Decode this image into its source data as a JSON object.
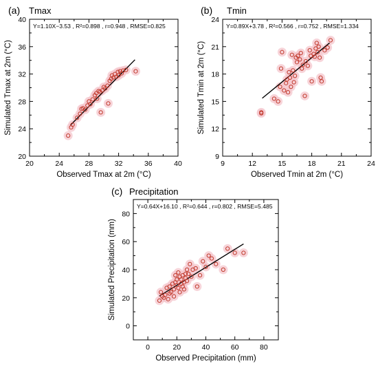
{
  "chart_data": [
    {
      "type": "scatter",
      "panel_label": "(a)",
      "title": "Tmax",
      "stats": "Y=1.10X−3.53 , R²=0.898 , r=0.948 , RMSE=0.825",
      "xlabel": "Observed Tmax at 2m (°C)",
      "ylabel": "Simulated Tmax at 2m (°C)",
      "xlim": [
        20,
        40
      ],
      "ylim": [
        20,
        40
      ],
      "xticks": [
        "20",
        "24",
        "28",
        "32",
        "36",
        "40"
      ],
      "yticks": [
        "20",
        "24",
        "28",
        "32",
        "36",
        "40"
      ],
      "regression": {
        "slope": 1.1,
        "intercept": -3.53,
        "x_range": [
          25.5,
          34.2
        ]
      },
      "marker_color": "#c0392b",
      "halo_color": "#f4c6cc",
      "line_color": "#000000",
      "points": [
        [
          25.2,
          23.0
        ],
        [
          25.6,
          24.2
        ],
        [
          25.8,
          24.6
        ],
        [
          26.4,
          25.6
        ],
        [
          26.8,
          26.2
        ],
        [
          27.0,
          26.9
        ],
        [
          27.2,
          27.0
        ],
        [
          27.5,
          26.8
        ],
        [
          27.8,
          27.4
        ],
        [
          28.0,
          28.0
        ],
        [
          28.2,
          27.6
        ],
        [
          28.5,
          28.3
        ],
        [
          28.8,
          28.9
        ],
        [
          29.0,
          29.2
        ],
        [
          29.1,
          28.4
        ],
        [
          29.3,
          29.5
        ],
        [
          29.5,
          29.4
        ],
        [
          29.6,
          26.4
        ],
        [
          29.8,
          29.6
        ],
        [
          30.0,
          30.1
        ],
        [
          30.2,
          29.9
        ],
        [
          30.5,
          30.3
        ],
        [
          30.6,
          27.7
        ],
        [
          30.8,
          31.0
        ],
        [
          31.0,
          31.3
        ],
        [
          31.1,
          31.8
        ],
        [
          31.3,
          31.5
        ],
        [
          31.5,
          32.0
        ],
        [
          31.7,
          31.6
        ],
        [
          31.9,
          32.3
        ],
        [
          32.0,
          31.8
        ],
        [
          32.2,
          32.4
        ],
        [
          32.4,
          32.1
        ],
        [
          32.6,
          32.5
        ],
        [
          33.0,
          32.6
        ],
        [
          34.3,
          32.4
        ]
      ]
    },
    {
      "type": "scatter",
      "panel_label": "(b)",
      "title": "Tmin",
      "stats": "Y=0.89X+3.78 , R²=0.566 , r=0.752 , RMSE=1.334",
      "xlabel": "Observed Tmin at 2m (°C)",
      "ylabel": "Simulated Tmin at 2m (°C)",
      "xlim": [
        9,
        24
      ],
      "ylim": [
        9,
        24
      ],
      "xticks": [
        "9",
        "12",
        "15",
        "18",
        "21",
        "24"
      ],
      "yticks": [
        "9",
        "12",
        "15",
        "18",
        "21",
        "24"
      ],
      "regression": {
        "slope": 0.89,
        "intercept": 3.78,
        "x_range": [
          13.0,
          19.8
        ]
      },
      "marker_color": "#c0392b",
      "halo_color": "#f4c6cc",
      "line_color": "#000000",
      "points": [
        [
          12.9,
          13.8
        ],
        [
          12.9,
          13.7
        ],
        [
          14.2,
          15.3
        ],
        [
          14.6,
          15.0
        ],
        [
          14.8,
          16.6
        ],
        [
          14.9,
          18.6
        ],
        [
          15.0,
          20.4
        ],
        [
          15.2,
          16.2
        ],
        [
          15.4,
          17.0
        ],
        [
          15.5,
          17.4
        ],
        [
          15.6,
          16.0
        ],
        [
          15.7,
          18.2
        ],
        [
          15.8,
          17.6
        ],
        [
          15.9,
          16.6
        ],
        [
          16.0,
          20.1
        ],
        [
          16.1,
          18.4
        ],
        [
          16.2,
          17.1
        ],
        [
          16.3,
          17.8
        ],
        [
          16.4,
          19.8
        ],
        [
          16.5,
          19.3
        ],
        [
          16.6,
          20.0
        ],
        [
          16.8,
          19.6
        ],
        [
          16.9,
          20.3
        ],
        [
          17.0,
          18.6
        ],
        [
          17.1,
          19.0
        ],
        [
          17.3,
          15.6
        ],
        [
          17.4,
          19.4
        ],
        [
          17.6,
          18.9
        ],
        [
          17.8,
          20.6
        ],
        [
          18.0,
          17.2
        ],
        [
          18.2,
          20.2
        ],
        [
          18.3,
          19.9
        ],
        [
          18.4,
          20.8
        ],
        [
          18.5,
          21.4
        ],
        [
          18.6,
          20.4
        ],
        [
          18.8,
          19.8
        ],
        [
          18.9,
          17.6
        ],
        [
          19.0,
          17.2
        ],
        [
          19.3,
          20.6
        ],
        [
          19.6,
          20.9
        ],
        [
          19.9,
          21.7
        ],
        [
          17.9,
          20.0
        ],
        [
          18.7,
          21.0
        ]
      ]
    },
    {
      "type": "scatter",
      "panel_label": "(c)",
      "title": "Precipitation",
      "stats": "Y=0.64X+16.10 , R²=0.644 , r=0.802 , RMSE=5.485",
      "xlabel": "Observed Precipitation (mm)",
      "ylabel": "Simulated Precipitation (mm)",
      "xlim": [
        -10,
        90
      ],
      "ylim": [
        -10,
        90
      ],
      "xticks": [
        "0",
        "20",
        "40",
        "60",
        "80"
      ],
      "yticks": [
        "0",
        "20",
        "40",
        "60",
        "80"
      ],
      "regression": {
        "slope": 0.64,
        "intercept": 16.1,
        "x_range": [
          8,
          66
        ]
      },
      "marker_color": "#c0392b",
      "halo_color": "#f4c6cc",
      "line_color": "#000000",
      "points": [
        [
          8,
          18
        ],
        [
          9,
          24
        ],
        [
          10,
          21
        ],
        [
          11,
          20
        ],
        [
          12,
          22
        ],
        [
          13,
          27
        ],
        [
          14,
          19
        ],
        [
          15,
          23
        ],
        [
          15,
          28
        ],
        [
          16,
          24
        ],
        [
          17,
          30
        ],
        [
          18,
          21
        ],
        [
          18,
          26
        ],
        [
          19,
          31
        ],
        [
          19,
          36
        ],
        [
          20,
          33
        ],
        [
          20,
          29
        ],
        [
          21,
          38
        ],
        [
          21,
          27
        ],
        [
          22,
          35
        ],
        [
          22,
          24
        ],
        [
          23,
          30
        ],
        [
          23,
          33
        ],
        [
          24,
          36
        ],
        [
          24,
          28
        ],
        [
          25,
          31
        ],
        [
          25,
          26
        ],
        [
          26,
          34
        ],
        [
          26,
          37
        ],
        [
          27,
          32
        ],
        [
          27,
          40
        ],
        [
          28,
          37
        ],
        [
          29,
          44
        ],
        [
          30,
          35
        ],
        [
          31,
          40
        ],
        [
          33,
          41
        ],
        [
          34,
          28
        ],
        [
          36,
          36
        ],
        [
          38,
          46
        ],
        [
          40,
          42
        ],
        [
          42,
          50
        ],
        [
          44,
          48
        ],
        [
          47,
          44
        ],
        [
          52,
          40
        ],
        [
          55,
          55
        ],
        [
          60,
          52
        ],
        [
          66,
          52
        ]
      ]
    }
  ]
}
